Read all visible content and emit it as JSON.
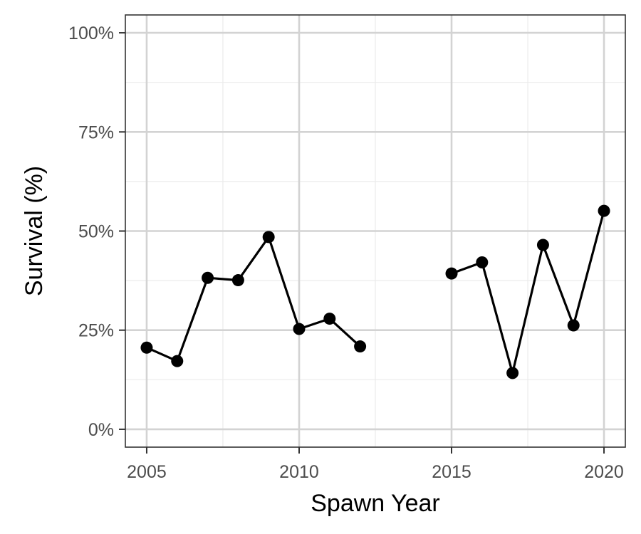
{
  "chart_data": {
    "type": "line",
    "title": "",
    "xlabel": "Spawn Year",
    "ylabel": "Survival (%)",
    "xlim": [
      2004.3,
      2020.7
    ],
    "ylim": [
      -4.5,
      104.5
    ],
    "x_ticks": [
      2005,
      2010,
      2015,
      2020
    ],
    "x_tick_labels": [
      "2005",
      "2010",
      "2015",
      "2020"
    ],
    "x_minor_ticks": [
      2007.5,
      2012.5,
      2017.5
    ],
    "y_ticks": [
      0,
      25,
      50,
      75,
      100
    ],
    "y_tick_labels": [
      "0%",
      "25%",
      "50%",
      "75%",
      "100%"
    ],
    "y_minor_ticks": [
      12.5,
      37.5,
      62.5,
      87.5
    ],
    "grid": true,
    "legend": "none",
    "series": [
      {
        "x": [
          2005,
          2006,
          2007,
          2008,
          2009,
          2010,
          2011,
          2012,
          2015,
          2016,
          2017,
          2018,
          2019,
          2020
        ],
        "y": [
          20.6,
          17.2,
          38.2,
          37.6,
          48.5,
          25.3,
          27.9,
          20.9,
          39.3,
          42.1,
          14.2,
          46.5,
          26.2,
          55.1
        ],
        "segments": [
          [
            2005,
            2012
          ],
          [
            2015,
            2020
          ]
        ]
      }
    ],
    "colors": {
      "line": "#000000",
      "point": "#000000",
      "grid_major": "#d3d3d3",
      "grid_minor": "#ebebeb",
      "panel_border": "#333333"
    }
  }
}
